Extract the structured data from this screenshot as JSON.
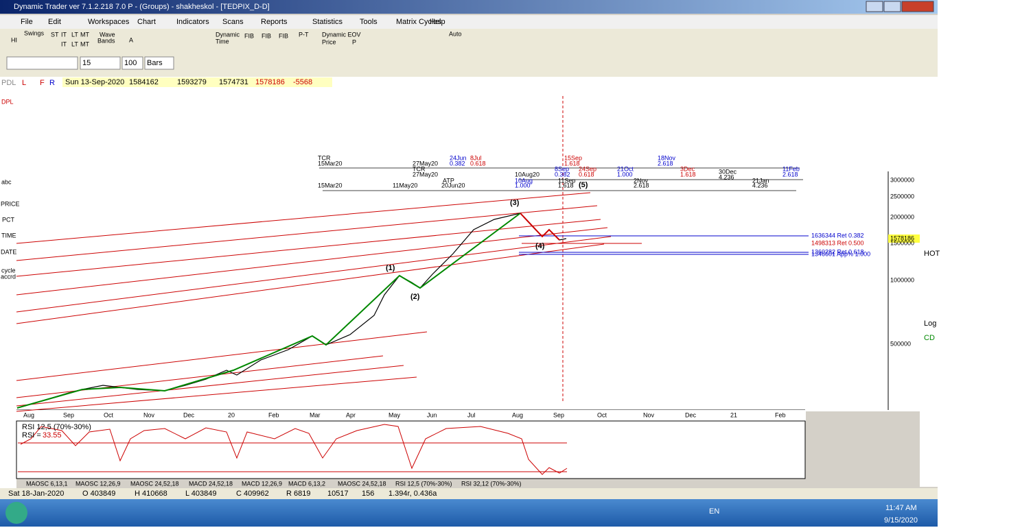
{
  "window": {
    "title": "Dynamic Trader ver 7.1.2.218 7.0 P - (Groups) - shakheskol - [TEDPIX_D-D]"
  },
  "menu": [
    "File",
    "Edit",
    "Workspaces",
    "Chart",
    "Indicators",
    "Scans",
    "Reports",
    "Statistics",
    "Tools",
    "Matrix Cycles",
    "Help"
  ],
  "toolbar": [
    "HI",
    "Swings",
    "ST",
    "IT",
    "LT",
    "MT",
    "IT",
    "LT",
    "MT",
    "Wave",
    "Bands",
    "A",
    "Dynamic",
    "Time",
    "FIB",
    "FIB",
    "FIB",
    "P-T",
    "Dynamic EOV",
    "Price",
    "P",
    "Auto"
  ],
  "controls": {
    "period": "15",
    "count": "100",
    "unit": "Bars"
  },
  "data_bar": {
    "tabs": [
      "PDL",
      "L",
      "F",
      "R"
    ],
    "date": "Sun 13-Sep-2020",
    "values": [
      "1584162",
      "1593279",
      "1574731",
      "1578186",
      "-5568"
    ]
  },
  "left_tools": [
    "DPL",
    "abc",
    "PRICE",
    "PCT",
    "TIME",
    "DATE",
    "cycle",
    "accrd"
  ],
  "right_tools": [
    "HOT",
    "Log",
    "CD"
  ],
  "chart": {
    "price_axis": [
      "3000000",
      "2500000",
      "2000000",
      "1500000",
      "1000000",
      "500000"
    ],
    "last_price": "1578186",
    "levels": [
      "1636344 Ret 0.382",
      "1498313 Ret 0.500",
      "1360282 Ret 0.618",
      "1346601 App% 1.000"
    ],
    "waves": [
      "(1)",
      "(2)",
      "(3)",
      "(4)",
      "(5)"
    ],
    "time_labels": [
      "TCR",
      "15Mar20",
      "27May20",
      "TCR",
      "27May20",
      "24Jun",
      "0.382",
      "8Jul",
      "0.618",
      "15Sep",
      "1.618",
      "18Nov",
      "2.618",
      "8Sep",
      "0.382",
      "24Sep",
      "0.618",
      "21Oct",
      "1.000",
      "3Dec",
      "1.618",
      "30Dec",
      "4.236",
      "11Feb",
      "2.618",
      "ATP",
      "10Aug20",
      "10Aug",
      "1.000",
      "11Sep",
      "1.618",
      "2Nov",
      "2.618",
      "21Jan",
      "4.236",
      "15Mar20",
      "11May20",
      "20Jun20"
    ],
    "months": [
      "Aug",
      "Sep",
      "Oct",
      "Nov",
      "Dec",
      "20",
      "Feb",
      "Mar",
      "Apr",
      "May",
      "Jun",
      "Jul",
      "Aug",
      "Sep",
      "Oct",
      "Nov",
      "Dec",
      "21",
      "Feb"
    ]
  },
  "rsi": {
    "label": "RSI 12,5 (70%-30%)",
    "reading_label": "RSI =",
    "reading": "33.55"
  },
  "tabs": [
    "MAOSC 6,13,1",
    "MAOSC 12,26,9",
    "MAOSC 24,52,18",
    "MACD 24,52,18",
    "MACD 12,26,9",
    "MACD 6,13,2",
    "MAOSC 24,52,18",
    "RSI 12,5 (70%-30%)",
    "RSI 32,12 (70%-30%)"
  ],
  "status": [
    "Sat 18-Jan-2020",
    "O 403849",
    "H 410668",
    "L 403849",
    "C 409962",
    "R 6819",
    "10517",
    "156",
    "1.394r, 0.436a"
  ],
  "taskbar": {
    "lang": "EN",
    "time": "11:47 AM",
    "date": "9/15/2020"
  }
}
